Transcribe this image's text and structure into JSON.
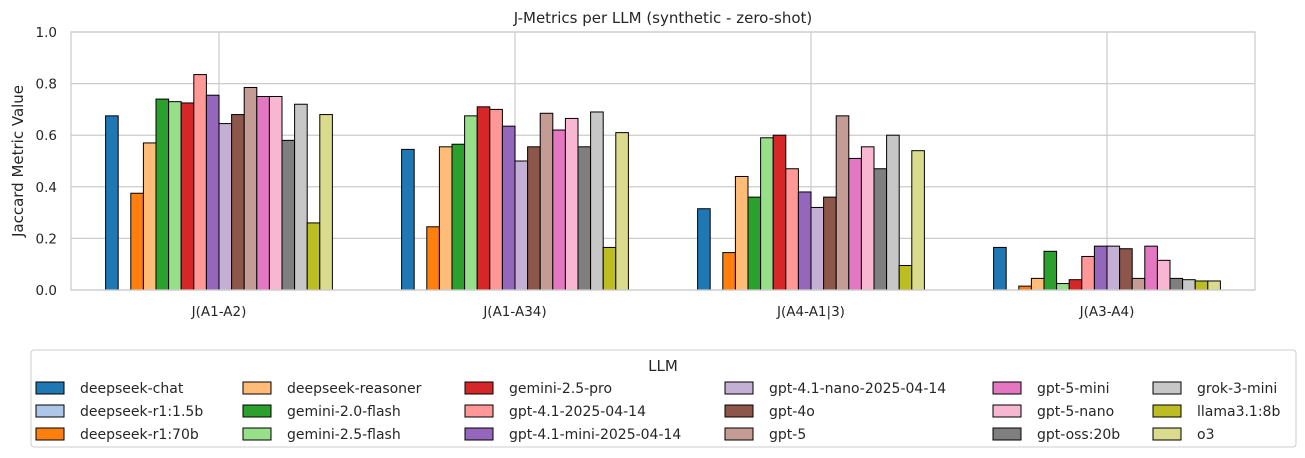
{
  "chart_data": {
    "type": "bar",
    "title": "J-Metrics per LLM (synthetic - zero-shot)",
    "xlabel": "",
    "ylabel": "Jaccard Metric Value",
    "ylim": [
      0,
      1.0
    ],
    "yticks": [
      "0.0",
      "0.2",
      "0.4",
      "0.6",
      "0.8",
      "1.0"
    ],
    "grid": true,
    "categories": [
      "J(A1-A2)",
      "J(A1-A34)",
      "J(A4-A1|3)",
      "J(A3-A4)"
    ],
    "legend": {
      "title": "LLM",
      "placement": "below",
      "columns": 6
    },
    "series": [
      {
        "name": "deepseek-chat",
        "color": "#1f77b4",
        "values": [
          0.675,
          0.545,
          0.315,
          0.165
        ]
      },
      {
        "name": "deepseek-r1:1.5b",
        "color": "#aec7e8",
        "values": [
          0,
          0,
          0,
          0
        ]
      },
      {
        "name": "deepseek-r1:70b",
        "color": "#ff7f0e",
        "values": [
          0.375,
          0.245,
          0.145,
          0.015
        ]
      },
      {
        "name": "deepseek-reasoner",
        "color": "#ffbb78",
        "values": [
          0.57,
          0.555,
          0.44,
          0.045
        ]
      },
      {
        "name": "gemini-2.0-flash",
        "color": "#2ca02c",
        "values": [
          0.74,
          0.565,
          0.36,
          0.15
        ]
      },
      {
        "name": "gemini-2.5-flash",
        "color": "#98df8a",
        "values": [
          0.73,
          0.675,
          0.59,
          0.025
        ]
      },
      {
        "name": "gemini-2.5-pro",
        "color": "#d62728",
        "values": [
          0.725,
          0.71,
          0.6,
          0.04
        ]
      },
      {
        "name": "gpt-4.1-2025-04-14",
        "color": "#ff9896",
        "values": [
          0.835,
          0.7,
          0.47,
          0.13
        ]
      },
      {
        "name": "gpt-4.1-mini-2025-04-14",
        "color": "#9467bd",
        "values": [
          0.755,
          0.635,
          0.38,
          0.17
        ]
      },
      {
        "name": "gpt-4.1-nano-2025-04-14",
        "color": "#c5b0d5",
        "values": [
          0.645,
          0.5,
          0.32,
          0.17
        ]
      },
      {
        "name": "gpt-4o",
        "color": "#8c564b",
        "values": [
          0.68,
          0.555,
          0.36,
          0.16
        ]
      },
      {
        "name": "gpt-5",
        "color": "#c49c94",
        "values": [
          0.785,
          0.685,
          0.675,
          0.045
        ]
      },
      {
        "name": "gpt-5-mini",
        "color": "#e377c2",
        "values": [
          0.75,
          0.62,
          0.51,
          0.17
        ]
      },
      {
        "name": "gpt-5-nano",
        "color": "#f7b6d2",
        "values": [
          0.75,
          0.665,
          0.555,
          0.115
        ]
      },
      {
        "name": "gpt-oss:20b",
        "color": "#7f7f7f",
        "values": [
          0.58,
          0.555,
          0.47,
          0.045
        ]
      },
      {
        "name": "grok-3-mini",
        "color": "#c7c7c7",
        "values": [
          0.72,
          0.69,
          0.6,
          0.04
        ]
      },
      {
        "name": "llama3.1:8b",
        "color": "#bcbd22",
        "values": [
          0.26,
          0.165,
          0.095,
          0.035
        ]
      },
      {
        "name": "o3",
        "color": "#dbdb8d",
        "values": [
          0.68,
          0.61,
          0.54,
          0.035
        ]
      }
    ]
  }
}
